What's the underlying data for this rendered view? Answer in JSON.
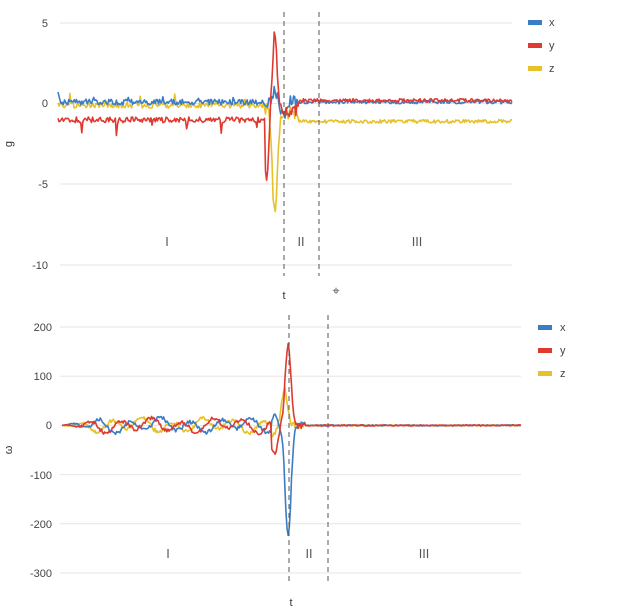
{
  "chart_data": [
    {
      "type": "line",
      "title": "",
      "xlabel": "t",
      "ylabel": "g",
      "ylim": [
        -10,
        5
      ],
      "yticks": [
        "5",
        "0",
        "-5",
        "-10"
      ],
      "grid": true,
      "legend": "top-right",
      "phases": [
        "I",
        "II",
        "III"
      ],
      "phase_boundaries": [
        0.455,
        0.53
      ],
      "colors": {
        "x": "#3b7dc4",
        "y": "#e03a30",
        "z": "#e6c12b"
      },
      "series": [
        {
          "name": "x",
          "baseline_I": 0.1,
          "baseline_III": 0.1,
          "peak": 0.6,
          "trough": -1.0
        },
        {
          "name": "y",
          "baseline_I": -1.0,
          "baseline_III": 0.2,
          "peak": 4.6,
          "trough": -4.2
        },
        {
          "name": "z",
          "baseline_I": -0.1,
          "baseline_III": -1.1,
          "peak": 0.3,
          "trough": -6.3
        }
      ]
    },
    {
      "type": "line",
      "title": "",
      "xlabel": "t",
      "ylabel": "ω",
      "ylim": [
        -300,
        200
      ],
      "yticks": [
        "200",
        "100",
        "0",
        "-100",
        "-200",
        "-300"
      ],
      "grid": true,
      "legend": "top-right",
      "phases": [
        "I",
        "II",
        "III"
      ],
      "phase_boundaries": [
        0.455,
        0.53
      ],
      "colors": {
        "x": "#3b7dc4",
        "y": "#e03a30",
        "z": "#e6c12b"
      },
      "series": [
        {
          "name": "x",
          "baseline_I": 0,
          "baseline_III": 0,
          "peak": 20,
          "trough": -228
        },
        {
          "name": "y",
          "baseline_I": 0,
          "baseline_III": 0,
          "peak": 162,
          "trough": -60
        },
        {
          "name": "z",
          "baseline_I": 0,
          "baseline_III": 0,
          "peak": 75,
          "trough": -20
        }
      ]
    }
  ]
}
